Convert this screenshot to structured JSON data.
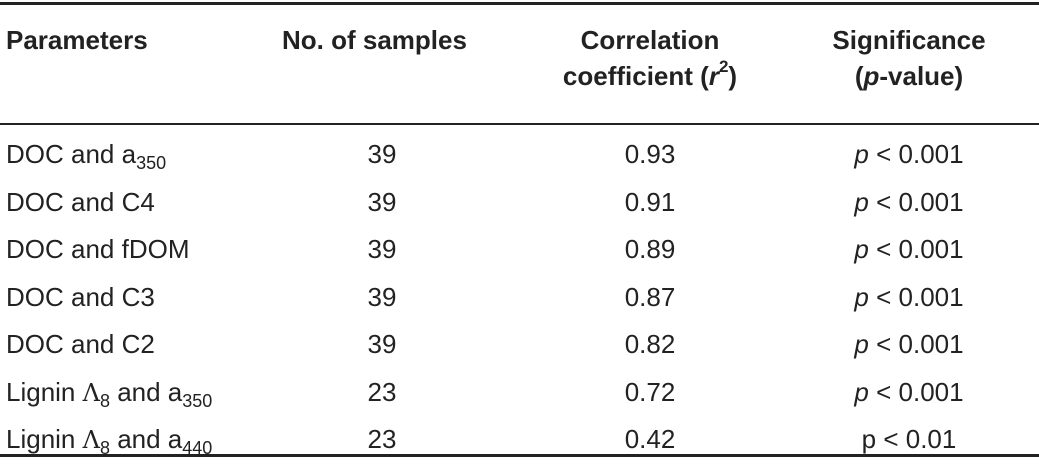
{
  "header": {
    "col1": "Parameters",
    "col2": "No. of samples",
    "col3_line1": "Correlation",
    "col3_line2_prefix": "coefficient (",
    "col3_r": "r",
    "col3_sup": "2",
    "col3_suffix": ")",
    "col4_line1": "Significance",
    "col4_line2_prefix": "(",
    "col4_p": "p",
    "col4_line2_suffix": "-value)"
  },
  "rows": [
    {
      "param_text": "DOC and a",
      "param_sub": "350",
      "param_lambda": "",
      "param_lambda_sub": "",
      "param_mid": "",
      "samples": "39",
      "r2": "0.93",
      "p_symbol": "p",
      "p_italic": true,
      "p_rest": " < 0.001"
    },
    {
      "param_text": "DOC and C4",
      "param_sub": "",
      "param_lambda": "",
      "param_lambda_sub": "",
      "param_mid": "",
      "samples": "39",
      "r2": "0.91",
      "p_symbol": "p",
      "p_italic": true,
      "p_rest": " < 0.001"
    },
    {
      "param_text": "DOC and fDOM",
      "param_sub": "",
      "param_lambda": "",
      "param_lambda_sub": "",
      "param_mid": "",
      "samples": "39",
      "r2": "0.89",
      "p_symbol": "p",
      "p_italic": true,
      "p_rest": " < 0.001"
    },
    {
      "param_text": "DOC and C3",
      "param_sub": "",
      "param_lambda": "",
      "param_lambda_sub": "",
      "param_mid": "",
      "samples": "39",
      "r2": "0.87",
      "p_symbol": "p",
      "p_italic": true,
      "p_rest": " < 0.001"
    },
    {
      "param_text": "DOC and C2",
      "param_sub": "",
      "param_lambda": "",
      "param_lambda_sub": "",
      "param_mid": "",
      "samples": "39",
      "r2": "0.82",
      "p_symbol": "p",
      "p_italic": true,
      "p_rest": " < 0.001"
    },
    {
      "param_text": "Lignin ",
      "param_sub": "",
      "param_lambda": "Λ",
      "param_lambda_sub": "8",
      "param_mid": " and a",
      "param_mid_sub": "350",
      "samples": "23",
      "r2": "0.72",
      "p_symbol": "p",
      "p_italic": true,
      "p_rest": " < 0.001"
    },
    {
      "param_text": "Lignin ",
      "param_sub": "",
      "param_lambda": "Λ",
      "param_lambda_sub": "8",
      "param_mid": " and a",
      "param_mid_sub": "440",
      "samples": "23",
      "r2": "0.42",
      "p_symbol": "p",
      "p_italic": false,
      "p_rest": " < 0.01"
    }
  ]
}
